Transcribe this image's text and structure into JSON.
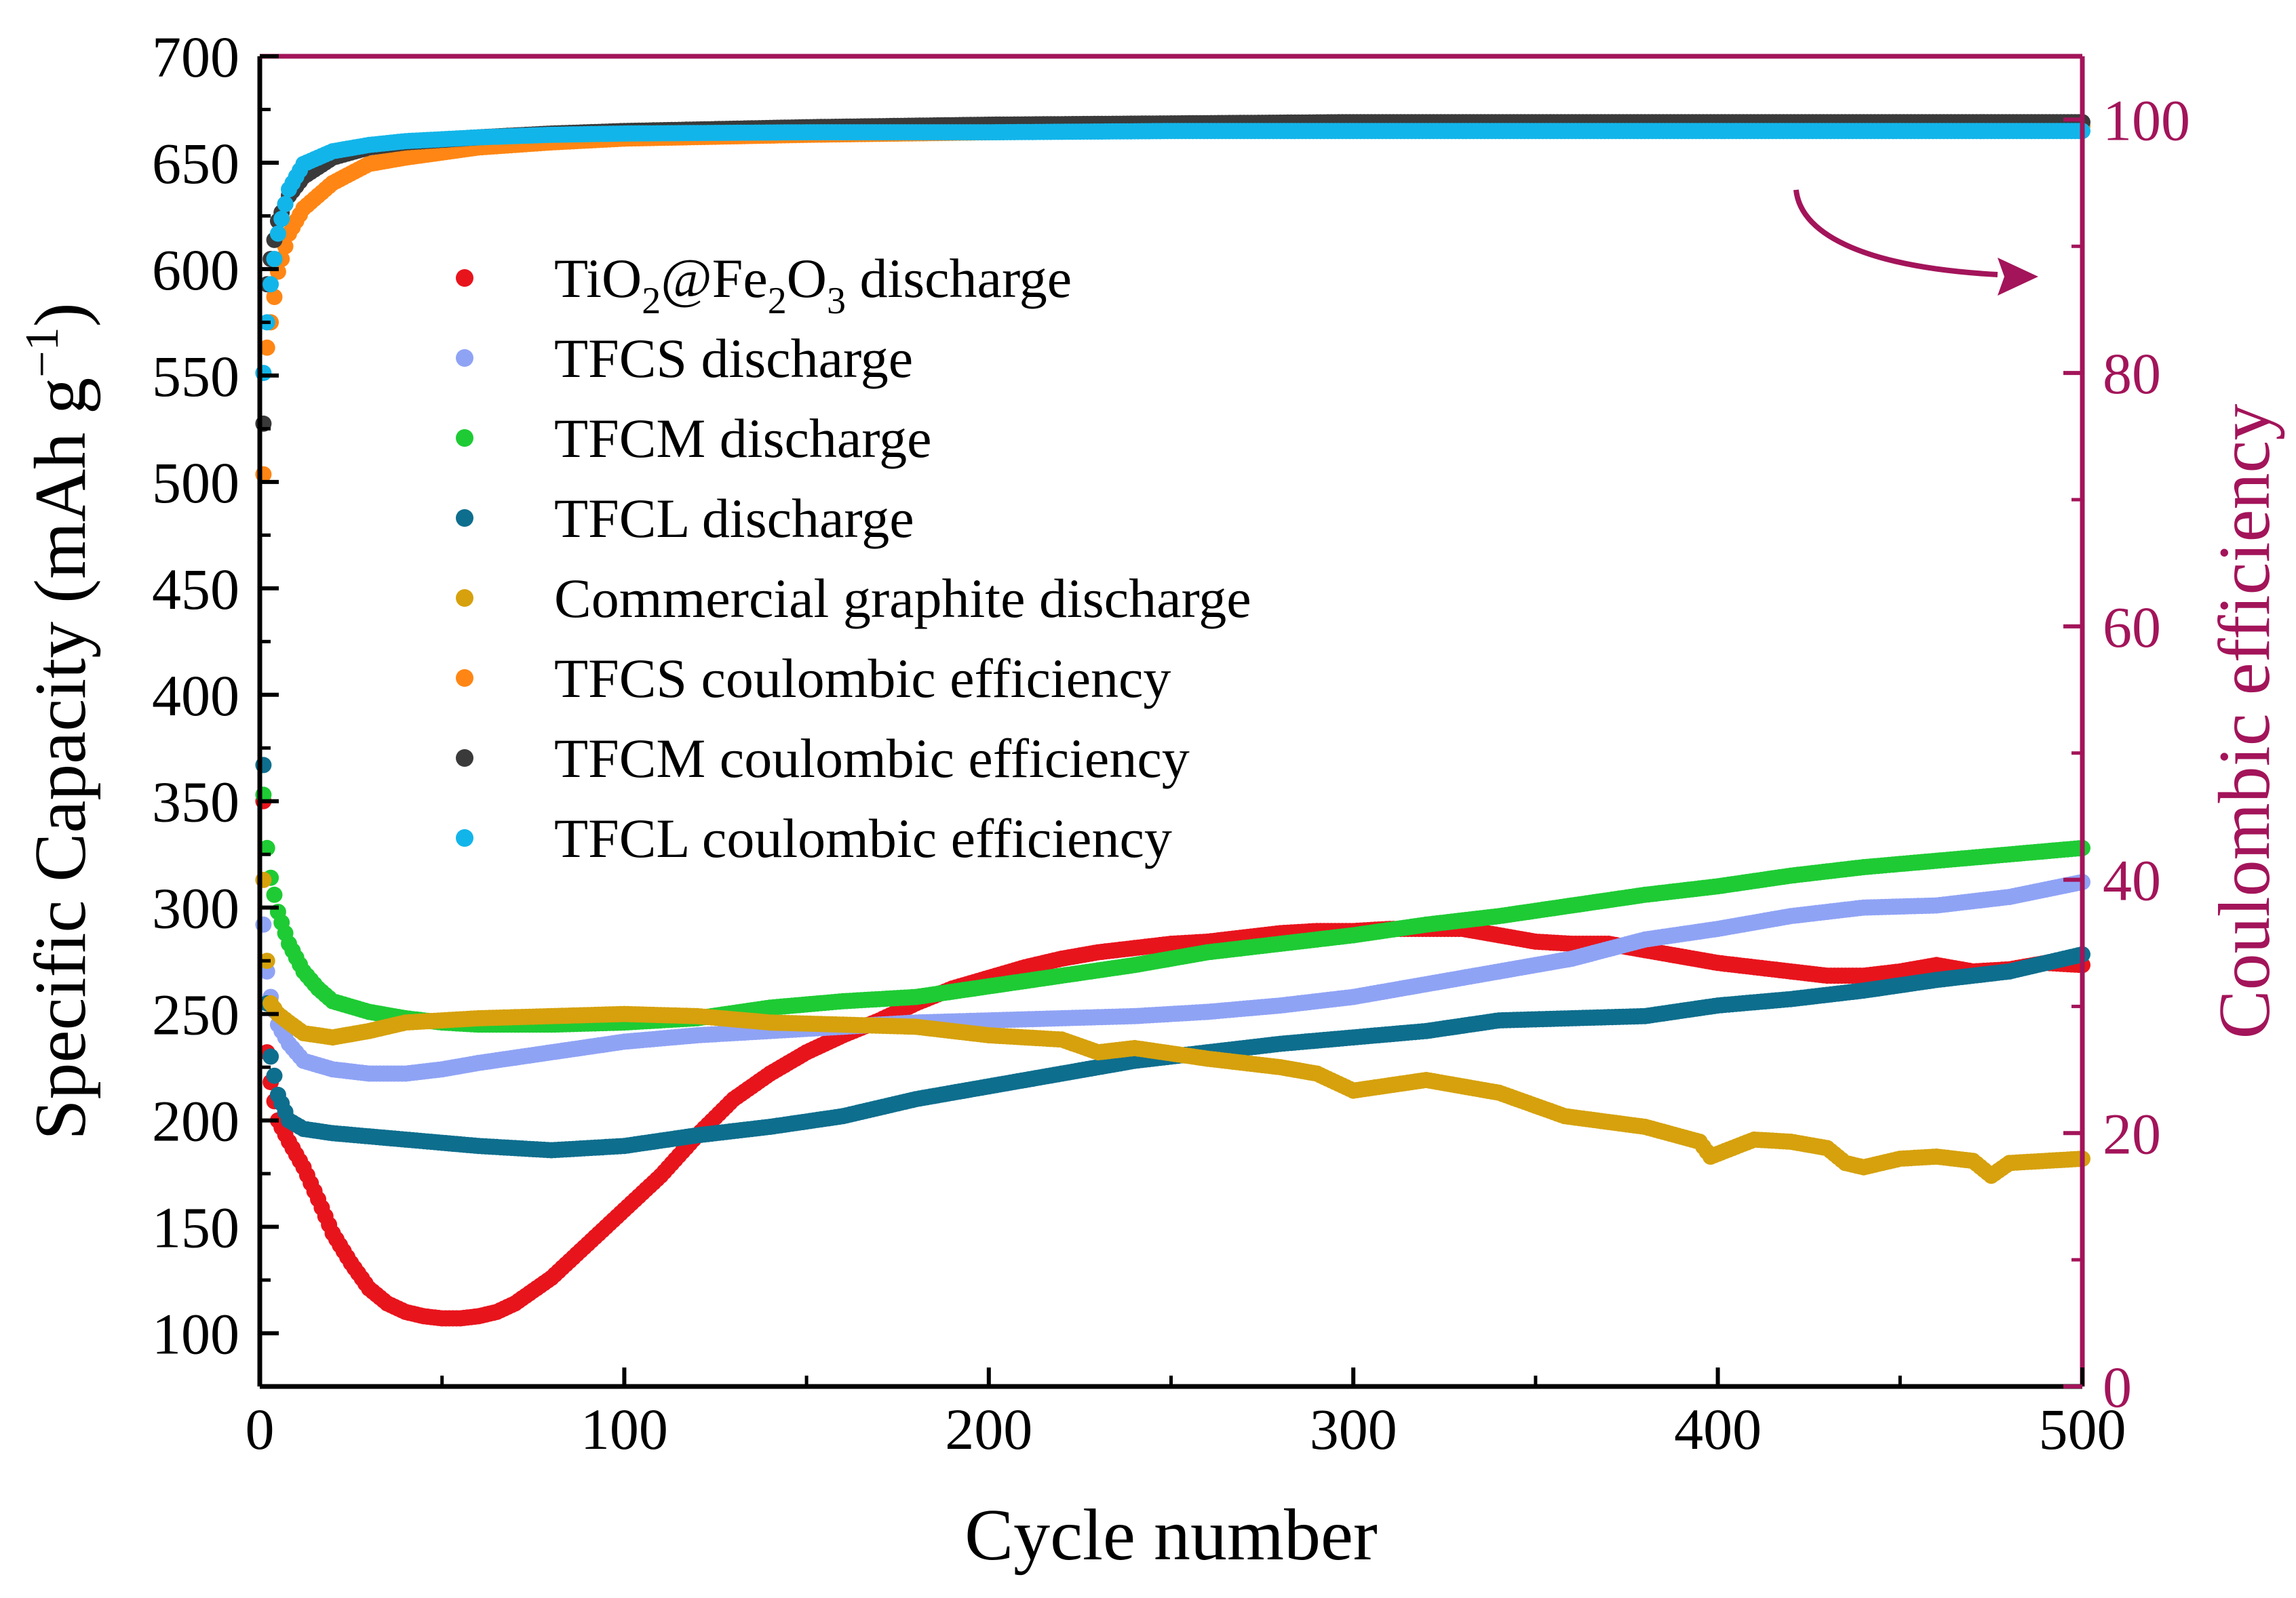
{
  "chart_data": {
    "type": "scatter",
    "x_axis": {
      "label": "Cycle number",
      "range": [
        0,
        500
      ],
      "ticks": [
        0,
        100,
        200,
        300,
        400,
        500
      ]
    },
    "y_left_axis": {
      "label_main": "Specific Capacity (mAh g",
      "label_sup": "−1",
      "label_close": ")",
      "range": [
        75,
        700
      ],
      "ticks": [
        100,
        150,
        200,
        250,
        300,
        350,
        400,
        450,
        500,
        550,
        600,
        650,
        700
      ]
    },
    "y_right_axis": {
      "label": "Coulombic efficiency",
      "range": [
        0,
        105
      ],
      "ticks": [
        0,
        20,
        40,
        60,
        80,
        100
      ],
      "color": "#a3145a"
    },
    "annotation": {
      "type": "arrow",
      "meaning": "coulombic efficiency series read on right axis",
      "color": "#a3145a"
    },
    "legend": [
      {
        "parts": [
          [
            "TiO",
            ""
          ],
          [
            "2",
            "sub"
          ],
          [
            "@Fe",
            ""
          ],
          [
            "2",
            "sub"
          ],
          [
            "O",
            ""
          ],
          [
            "3",
            "sub"
          ],
          [
            " discharge",
            ""
          ]
        ],
        "color": "#e8141c"
      },
      {
        "parts": [
          [
            "TFCS discharge",
            ""
          ]
        ],
        "color": "#8fa3f5"
      },
      {
        "parts": [
          [
            "TFCM discharge",
            ""
          ]
        ],
        "color": "#1ecb34"
      },
      {
        "parts": [
          [
            "TFCL discharge",
            ""
          ]
        ],
        "color": "#0e6e8e"
      },
      {
        "parts": [
          [
            "Commercial graphite discharge",
            ""
          ]
        ],
        "color": "#d6a10d"
      },
      {
        "parts": [
          [
            "TFCS coulombic efficiency",
            ""
          ]
        ],
        "color": "#ff8614"
      },
      {
        "parts": [
          [
            "TFCM coulombic efficiency",
            ""
          ]
        ],
        "color": "#3a3a3a"
      },
      {
        "parts": [
          [
            "TFCL coulombic efficiency",
            ""
          ]
        ],
        "color": "#12b5ea"
      }
    ],
    "series": [
      {
        "name": "TiO2@Fe2O3 discharge",
        "axis": "left",
        "color": "#e8141c",
        "x": [
          1,
          2,
          3,
          5,
          8,
          12,
          16,
          20,
          25,
          30,
          35,
          40,
          45,
          50,
          55,
          60,
          65,
          70,
          80,
          90,
          100,
          110,
          120,
          130,
          140,
          150,
          160,
          170,
          180,
          190,
          200,
          210,
          220,
          230,
          240,
          250,
          260,
          270,
          280,
          290,
          300,
          310,
          320,
          330,
          340,
          350,
          360,
          370,
          380,
          390,
          400,
          410,
          420,
          430,
          440,
          450,
          460,
          470,
          480,
          490,
          500
        ],
        "y": [
          350,
          232,
          218,
          200,
          190,
          178,
          163,
          147,
          133,
          121,
          114,
          110,
          108,
          107,
          107,
          108,
          110,
          114,
          126,
          142,
          158,
          174,
          193,
          210,
          222,
          232,
          240,
          247,
          255,
          262,
          267,
          272,
          276,
          279,
          281,
          283,
          284,
          286,
          288,
          289,
          289,
          290,
          290,
          290,
          287,
          284,
          283,
          283,
          280,
          277,
          274,
          272,
          270,
          268,
          268,
          270,
          273,
          270,
          271,
          274,
          273
        ]
      },
      {
        "name": "TFCS discharge",
        "axis": "left",
        "color": "#8fa3f5",
        "x": [
          1,
          2,
          3,
          5,
          8,
          12,
          20,
          30,
          40,
          50,
          60,
          80,
          100,
          120,
          140,
          160,
          180,
          200,
          220,
          240,
          260,
          280,
          300,
          320,
          340,
          360,
          380,
          400,
          420,
          440,
          460,
          480,
          500
        ],
        "y": [
          292,
          270,
          258,
          245,
          236,
          228,
          224,
          222,
          222,
          224,
          227,
          232,
          237,
          240,
          242,
          244,
          246,
          247,
          248,
          249,
          251,
          254,
          258,
          264,
          270,
          276,
          285,
          290,
          296,
          300,
          301,
          305,
          312
        ]
      },
      {
        "name": "TFCM discharge",
        "axis": "left",
        "color": "#1ecb34",
        "x": [
          1,
          2,
          3,
          5,
          8,
          12,
          16,
          20,
          30,
          40,
          50,
          60,
          80,
          100,
          120,
          140,
          160,
          180,
          200,
          220,
          240,
          260,
          280,
          300,
          320,
          340,
          360,
          380,
          400,
          420,
          440,
          460,
          480,
          500
        ],
        "y": [
          353,
          328,
          314,
          298,
          283,
          270,
          262,
          256,
          251,
          248,
          246,
          245,
          245,
          246,
          248,
          253,
          256,
          258,
          263,
          268,
          273,
          279,
          283,
          287,
          292,
          296,
          301,
          306,
          310,
          315,
          319,
          322,
          325,
          328
        ]
      },
      {
        "name": "TFCL discharge",
        "axis": "left",
        "color": "#0e6e8e",
        "x": [
          1,
          2,
          3,
          5,
          8,
          12,
          20,
          40,
          60,
          80,
          100,
          120,
          140,
          160,
          180,
          200,
          220,
          240,
          260,
          280,
          300,
          320,
          340,
          360,
          380,
          400,
          420,
          440,
          460,
          480,
          500
        ],
        "y": [
          367,
          255,
          230,
          212,
          200,
          196,
          194,
          191,
          188,
          186,
          188,
          193,
          197,
          202,
          210,
          216,
          222,
          228,
          232,
          236,
          239,
          242,
          247,
          248,
          249,
          254,
          257,
          261,
          266,
          270,
          278
        ]
      },
      {
        "name": "Commercial graphite discharge",
        "axis": "left",
        "color": "#d6a10d",
        "x": [
          1,
          2,
          3,
          5,
          8,
          12,
          20,
          30,
          40,
          60,
          80,
          100,
          120,
          140,
          160,
          180,
          200,
          220,
          230,
          240,
          260,
          280,
          290,
          300,
          320,
          340,
          358,
          380,
          395,
          398,
          410,
          420,
          430,
          435,
          440,
          450,
          460,
          470,
          475,
          480,
          490,
          500
        ],
        "y": [
          313,
          275,
          255,
          250,
          246,
          241,
          239,
          242,
          246,
          248,
          249,
          250,
          249,
          246,
          245,
          244,
          240,
          238,
          232,
          234,
          229,
          225,
          222,
          214,
          219,
          213,
          202,
          197,
          190,
          183,
          191,
          190,
          187,
          180,
          178,
          182,
          183,
          181,
          174,
          180,
          181,
          182
        ]
      },
      {
        "name": "TFCS coulombic efficiency",
        "axis": "right",
        "color": "#ff8614",
        "x": [
          1,
          2,
          3,
          5,
          8,
          12,
          20,
          30,
          40,
          60,
          80,
          100,
          150,
          200,
          250,
          300,
          350,
          400,
          450,
          500
        ],
        "y": [
          72,
          82,
          84,
          88,
          91,
          93,
          95,
          96.5,
          97,
          97.8,
          98.2,
          98.5,
          98.8,
          99,
          99.2,
          99.3,
          99.4,
          99.5,
          99.5,
          99.5
        ]
      },
      {
        "name": "TFCM coulombic efficiency",
        "axis": "right",
        "color": "#3a3a3a",
        "x": [
          1,
          2,
          3,
          5,
          8,
          12,
          20,
          30,
          40,
          60,
          80,
          100,
          150,
          200,
          250,
          300,
          350,
          400,
          450,
          500
        ],
        "y": [
          76,
          87,
          89,
          92,
          94,
          95.5,
          97,
          97.8,
          98.2,
          98.6,
          98.9,
          99.1,
          99.4,
          99.6,
          99.7,
          99.8,
          99.8,
          99.8,
          99.8,
          99.8
        ]
      },
      {
        "name": "TFCL coulombic efficiency",
        "axis": "right",
        "color": "#12b5ea",
        "x": [
          1,
          2,
          3,
          5,
          8,
          12,
          20,
          30,
          40,
          60,
          80,
          100,
          150,
          200,
          250,
          300,
          350,
          400,
          450,
          500
        ],
        "y": [
          80,
          84,
          87,
          91,
          94.5,
          96.5,
          97.5,
          98,
          98.3,
          98.6,
          98.8,
          98.9,
          99,
          99,
          99.1,
          99.1,
          99.1,
          99.1,
          99.1,
          99.1
        ]
      }
    ]
  }
}
